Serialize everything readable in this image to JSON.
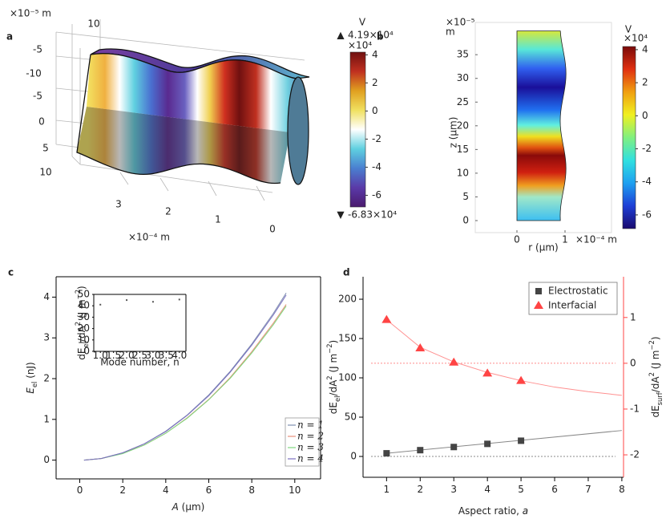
{
  "chart_data": [
    {
      "type": "surface3d",
      "panel_label": "a",
      "axis_unit_vertical": "×10⁻⁵ m",
      "vertical_ticks": [
        10,
        -5,
        -10,
        -5,
        0,
        5,
        10
      ],
      "xticks": [
        3,
        2,
        1,
        0
      ],
      "x_unit": "×10⁻⁴ m",
      "colorbar": {
        "unit": "V",
        "multiplier": "×10⁴",
        "clim": [
          -6.83,
          4.19
        ],
        "clim_labels": [
          "-6.83×10⁴",
          "4.19×10⁴"
        ],
        "ticks": [
          4,
          2,
          0,
          -2,
          -4,
          -6
        ],
        "colors": [
          "#4b1a6e",
          "#5a3aa8",
          "#4a7fd0",
          "#5fd0e0",
          "#ffffff",
          "#f0e060",
          "#e0a020",
          "#c03020",
          "#701010"
        ]
      }
    },
    {
      "type": "field2d",
      "panel_label": "b",
      "y_unit": "×10⁻⁵",
      "y_unit2": "m",
      "ylabel": "z (μm)",
      "xlabel": "r (μm)",
      "x_unit": "×10⁻⁴ m",
      "xlim": [
        -0.867,
        1.967
      ],
      "ylim": [
        -2.54,
        41.8
      ],
      "xticks": [
        0,
        1
      ],
      "yticks": [
        0,
        5,
        10,
        15,
        20,
        25,
        30,
        35
      ],
      "domain_r": [
        0,
        1
      ],
      "domain_z": [
        0,
        40
      ],
      "colorbar": {
        "unit": "V",
        "multiplier": "×10⁴",
        "clim": [
          -6.83,
          4.19
        ],
        "ticks": [
          4,
          2,
          0,
          -2,
          -4,
          -6
        ],
        "colors": [
          "#1a0a6e",
          "#1e3fd6",
          "#1ea0f0",
          "#30e0e0",
          "#80f080",
          "#f0f020",
          "#f0a010",
          "#e03010",
          "#7a0a0a"
        ]
      }
    },
    {
      "type": "line",
      "panel_label": "c",
      "xlabel_parts": [
        {
          "text": "A",
          "italic": true
        },
        {
          "text": " (μm)"
        }
      ],
      "ylabel_parts": [
        {
          "text": "E",
          "italic": true
        },
        {
          "text": "el",
          "sub": true
        },
        {
          "text": "  (nJ)"
        }
      ],
      "x": [
        0.2,
        1,
        2,
        3,
        4,
        5,
        6,
        7,
        8,
        9,
        9.6
      ],
      "series": [
        {
          "name": "n = 1",
          "color": "#7f8fb0",
          "values": [
            0,
            0.04,
            0.18,
            0.4,
            0.71,
            1.11,
            1.6,
            2.18,
            2.85,
            3.6,
            4.1
          ]
        },
        {
          "name": "n = 2",
          "color": "#e8907a",
          "values": [
            0,
            0.04,
            0.17,
            0.37,
            0.66,
            1.04,
            1.49,
            2.03,
            2.66,
            3.36,
            3.82
          ]
        },
        {
          "name": "n = 3",
          "color": "#7ed87e",
          "values": [
            0,
            0.04,
            0.16,
            0.37,
            0.66,
            1.03,
            1.48,
            2.01,
            2.63,
            3.32,
            3.78
          ]
        },
        {
          "name": "n = 4",
          "color": "#7a6fc0",
          "values": [
            0,
            0.04,
            0.18,
            0.4,
            0.7,
            1.1,
            1.58,
            2.16,
            2.82,
            3.56,
            4.05
          ]
        }
      ],
      "xlim": [
        -1.1,
        11.2
      ],
      "ylim": [
        -0.46,
        4.5
      ],
      "xticks": [
        0,
        2,
        4,
        6,
        8,
        10
      ],
      "yticks": [
        0,
        1,
        2,
        3,
        4
      ],
      "legend": "lower right",
      "inset": {
        "type": "scatter",
        "x": [
          1,
          2,
          3,
          4
        ],
        "values": [
          41,
          45,
          43.5,
          45.5
        ],
        "color": "#555555",
        "xlim": [
          0.75,
          4.25
        ],
        "ylim": [
          0,
          50
        ],
        "xticks": [
          {
            "value": 1,
            "label": "1.0"
          },
          {
            "value": 1.5,
            "label": "1.5"
          },
          {
            "value": 2,
            "label": "2.0"
          },
          {
            "value": 2.5,
            "label": "2.5"
          },
          {
            "value": 3,
            "label": "3.0"
          },
          {
            "value": 3.5,
            "label": "3.5"
          },
          {
            "value": 4,
            "label": "4.0"
          }
        ],
        "yticks": [
          0,
          10,
          20,
          30,
          40,
          50
        ],
        "xlabel": "Mode number, n",
        "ylabel_parts": [
          {
            "text": "dE"
          },
          {
            "text": "el",
            "sub": true
          },
          {
            "text": "/dA"
          },
          {
            "text": "2",
            "sup": true
          },
          {
            "text": " (J m"
          },
          {
            "text": "−2",
            "sup": true
          },
          {
            "text": ")"
          }
        ]
      }
    },
    {
      "type": "scatter",
      "panel_label": "d",
      "xlabel_parts": [
        {
          "text": "Aspect ratio, "
        },
        {
          "text": "a",
          "italic": true
        }
      ],
      "ylabel_parts": [
        {
          "text": "dE"
        },
        {
          "text": "el",
          "sub": true
        },
        {
          "text": "/dA"
        },
        {
          "text": "2",
          "sup": true
        },
        {
          "text": " (J m"
        },
        {
          "text": "−2",
          "sup": true
        },
        {
          "text": ")"
        }
      ],
      "y2label_parts": [
        {
          "text": "dE"
        },
        {
          "text": "surf",
          "sub": true
        },
        {
          "text": "/dA"
        },
        {
          "text": "2",
          "sup": true
        },
        {
          "text": " (J m"
        },
        {
          "text": "−2",
          "sup": true
        },
        {
          "text": ")"
        }
      ],
      "x": [
        1,
        2,
        3,
        4,
        5
      ],
      "series": [
        {
          "name": "Electrostatic",
          "color": "#444444",
          "marker": "square",
          "values": [
            4,
            8,
            12,
            16,
            20
          ]
        },
        {
          "name": "Interfacial",
          "color": "#ff4444",
          "marker": "triangle",
          "axis": "y2",
          "values": [
            0.95,
            0.33,
            0.02,
            -0.22,
            -0.38
          ]
        }
      ],
      "fits": [
        {
          "color": "#888888",
          "x": [
            1,
            8
          ],
          "values": [
            4,
            33
          ]
        },
        {
          "color": "#ff9090",
          "axis": "y2",
          "x": [
            1,
            2,
            3,
            4,
            5,
            6,
            7,
            8
          ],
          "values": [
            0.95,
            0.35,
            0.03,
            -0.2,
            -0.38,
            -0.52,
            -0.62,
            -0.7
          ]
        }
      ],
      "hlines": [
        {
          "value": 0,
          "color": "#666666"
        },
        {
          "value": 0,
          "axis": "y2",
          "color": "#ff6666"
        }
      ],
      "xlim": [
        0.3,
        8.05
      ],
      "ylim": [
        -26.5,
        228.6
      ],
      "y2lim": [
        -2.49,
        1.89
      ],
      "xticks": [
        1,
        2,
        3,
        4,
        5,
        6,
        7,
        8
      ],
      "yticks": [
        0,
        50,
        100,
        150,
        200
      ],
      "y2ticks": [
        -2,
        -1,
        0,
        1
      ],
      "y2color": "#ff4444",
      "legend": "upper right"
    }
  ]
}
